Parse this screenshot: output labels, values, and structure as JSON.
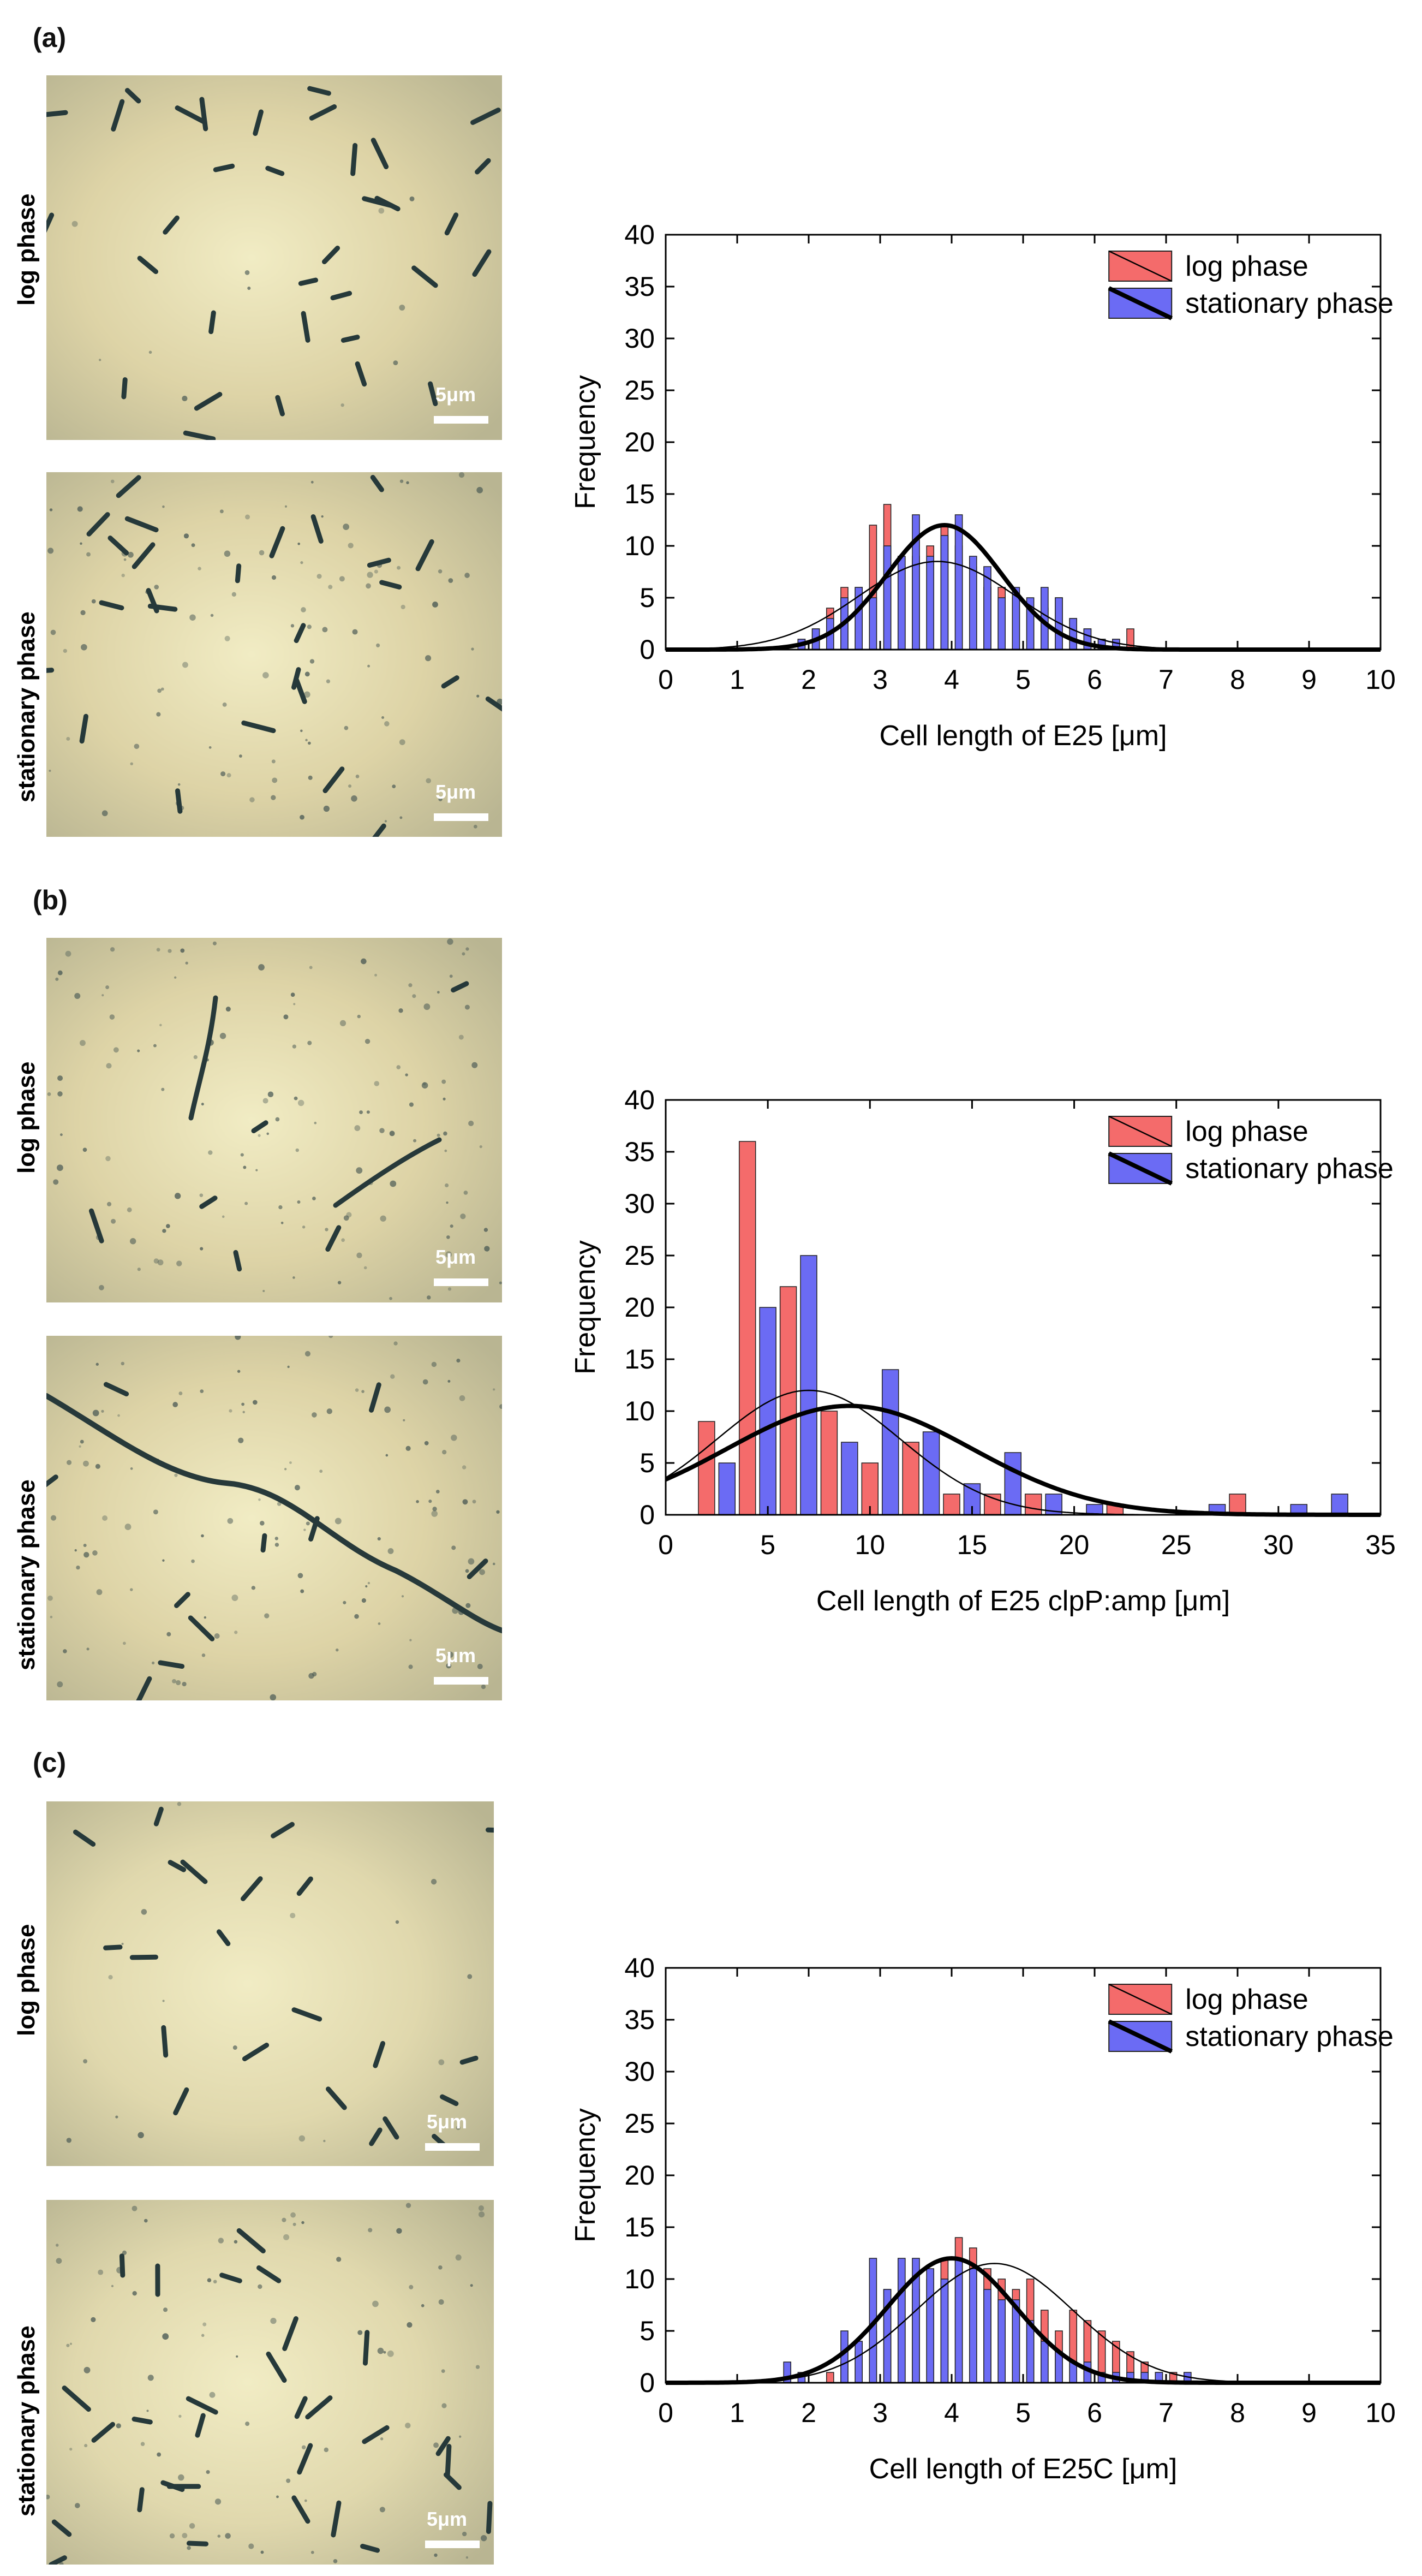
{
  "colors": {
    "log": "#f46b6b",
    "stationary": "#6b6bf4",
    "bg_a": "#ddd3a6",
    "bg_c": "#e0d8ad"
  },
  "panels": [
    {
      "label": "(a)",
      "images": [
        {
          "side_label": "log phase",
          "scale_label": "5μm"
        },
        {
          "side_label": "stationary phase",
          "scale_label": "5μm"
        }
      ]
    },
    {
      "label": "(b)",
      "images": [
        {
          "side_label": "log phase",
          "scale_label": "5μm"
        },
        {
          "side_label": "stationary phase",
          "scale_label": "5μm"
        }
      ]
    },
    {
      "label": "(c)",
      "images": [
        {
          "side_label": "log phase",
          "scale_label": "5μm"
        },
        {
          "side_label": "stationary phase",
          "scale_label": "5μm"
        }
      ]
    }
  ],
  "chart_data": [
    {
      "type": "bar",
      "title": "",
      "xlabel": "Cell length of E25 [μm]",
      "ylabel": "Frequency",
      "xlim": [
        0,
        10
      ],
      "ylim": [
        0,
        40
      ],
      "xticks": [
        0,
        1,
        2,
        3,
        4,
        5,
        6,
        7,
        8,
        9,
        10
      ],
      "yticks": [
        0,
        5,
        10,
        15,
        20,
        25,
        30,
        35,
        40
      ],
      "bin_width": 0.1,
      "legend": [
        "log phase",
        "stationary phase"
      ],
      "legend_position": "top-right",
      "series": [
        {
          "name": "log phase",
          "x": [
            1.7,
            1.9,
            2.1,
            2.3,
            2.5,
            2.7,
            2.9,
            3.1,
            3.3,
            3.5,
            3.7,
            3.9,
            4.1,
            4.3,
            4.5,
            4.7,
            4.9,
            5.1,
            5.3,
            5.5,
            5.7,
            5.9,
            6.1,
            6.3,
            6.5
          ],
          "values": [
            0,
            1,
            2,
            4,
            6,
            6,
            12,
            14,
            8,
            9,
            10,
            12,
            10,
            8,
            6,
            6,
            5,
            4,
            4,
            5,
            3,
            2,
            1,
            1,
            2
          ]
        },
        {
          "name": "stationary phase",
          "x": [
            1.9,
            2.1,
            2.3,
            2.5,
            2.7,
            2.9,
            3.1,
            3.3,
            3.5,
            3.7,
            3.9,
            4.1,
            4.3,
            4.5,
            4.7,
            4.9,
            5.1,
            5.3,
            5.5,
            5.7,
            5.9,
            6.1,
            6.3
          ],
          "values": [
            1,
            2,
            3,
            5,
            6,
            5,
            10,
            9,
            13,
            9,
            11,
            13,
            9,
            8,
            5,
            6,
            5,
            6,
            5,
            3,
            2,
            1,
            1
          ]
        }
      ],
      "fits": [
        {
          "name": "log phase fit",
          "mean": 3.8,
          "sd": 1.1,
          "peak": 8.5,
          "style": "thin"
        },
        {
          "name": "stationary phase fit",
          "mean": 3.9,
          "sd": 0.8,
          "peak": 12,
          "style": "thick"
        }
      ]
    },
    {
      "type": "bar",
      "title": "",
      "xlabel": "Cell length of E25 clpP:amp [μm]",
      "ylabel": "Frequency",
      "xlim": [
        0,
        35
      ],
      "ylim": [
        0,
        40
      ],
      "xticks": [
        0,
        5,
        10,
        15,
        20,
        25,
        30,
        35
      ],
      "yticks": [
        0,
        5,
        10,
        15,
        20,
        25,
        30,
        35,
        40
      ],
      "bin_width": 0.8,
      "legend": [
        "log phase",
        "stationary phase"
      ],
      "legend_position": "top-right",
      "series": [
        {
          "name": "log phase",
          "x": [
            2,
            4,
            6,
            8,
            10,
            12,
            14,
            16,
            18,
            20,
            22,
            24,
            26,
            28,
            30,
            32
          ],
          "values": [
            9,
            36,
            22,
            10,
            5,
            7,
            2,
            2,
            2,
            0,
            1,
            0,
            0,
            2,
            0,
            0
          ]
        },
        {
          "name": "stationary phase",
          "x": [
            3,
            5,
            7,
            9,
            11,
            13,
            15,
            17,
            19,
            21,
            23,
            25,
            27,
            29,
            31,
            33
          ],
          "values": [
            5,
            20,
            25,
            7,
            14,
            8,
            3,
            6,
            2,
            1,
            0,
            0,
            1,
            0,
            1,
            2
          ]
        }
      ],
      "fits": [
        {
          "name": "log phase fit",
          "mean": 7.0,
          "sd": 4.5,
          "peak": 12,
          "style": "thin"
        },
        {
          "name": "stationary phase fit",
          "mean": 9.0,
          "sd": 6.0,
          "peak": 10.5,
          "style": "thick"
        }
      ]
    },
    {
      "type": "bar",
      "title": "",
      "xlabel": "Cell length of E25C [μm]",
      "ylabel": "Frequency",
      "xlim": [
        0,
        10
      ],
      "ylim": [
        0,
        40
      ],
      "xticks": [
        0,
        1,
        2,
        3,
        4,
        5,
        6,
        7,
        8,
        9,
        10
      ],
      "yticks": [
        0,
        5,
        10,
        15,
        20,
        25,
        30,
        35,
        40
      ],
      "bin_width": 0.1,
      "legend": [
        "log phase",
        "stationary phase"
      ],
      "legend_position": "top-right",
      "series": [
        {
          "name": "log phase",
          "x": [
            2.1,
            2.3,
            2.5,
            2.7,
            2.9,
            3.1,
            3.3,
            3.5,
            3.7,
            3.9,
            4.1,
            4.3,
            4.5,
            4.7,
            4.9,
            5.1,
            5.3,
            5.5,
            5.7,
            5.9,
            6.1,
            6.3,
            6.5,
            6.7,
            6.9,
            7.1
          ],
          "values": [
            0,
            1,
            2,
            3,
            5,
            9,
            9,
            9,
            10,
            12,
            14,
            13,
            11,
            10,
            9,
            10,
            7,
            5,
            7,
            6,
            5,
            4,
            3,
            2,
            1,
            1
          ]
        },
        {
          "name": "stationary phase",
          "x": [
            1.7,
            1.9,
            2.1,
            2.3,
            2.5,
            2.7,
            2.9,
            3.1,
            3.3,
            3.5,
            3.7,
            3.9,
            4.1,
            4.3,
            4.5,
            4.7,
            4.9,
            5.1,
            5.3,
            5.5,
            5.7,
            5.9,
            6.1,
            6.3,
            6.5,
            6.7,
            6.9,
            7.1,
            7.3
          ],
          "values": [
            2,
            1,
            0,
            0,
            5,
            4,
            12,
            9,
            12,
            12,
            11,
            10,
            12,
            11,
            9,
            8,
            8,
            6,
            4,
            3,
            2,
            2,
            1,
            1,
            1,
            1,
            1,
            0,
            1
          ]
        }
      ],
      "fits": [
        {
          "name": "log phase fit",
          "mean": 4.6,
          "sd": 1.1,
          "peak": 11.5,
          "style": "thin"
        },
        {
          "name": "stationary phase fit",
          "mean": 4.0,
          "sd": 0.9,
          "peak": 12,
          "style": "thick"
        }
      ]
    }
  ]
}
